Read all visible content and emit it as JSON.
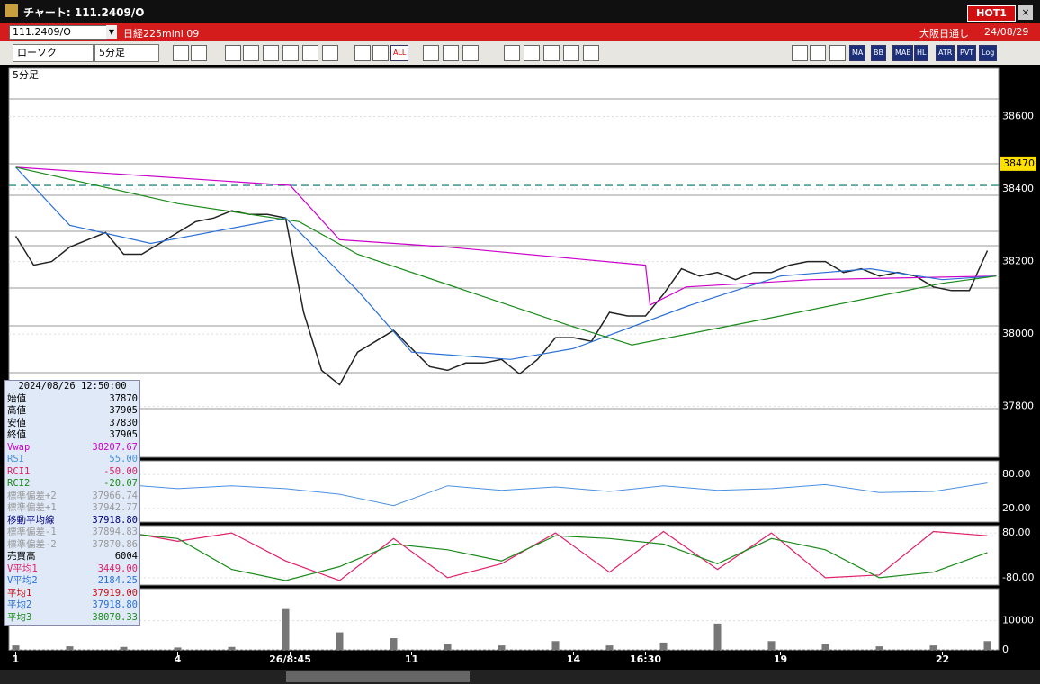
{
  "window": {
    "title": "チャート: 111.2409/O",
    "hot": "HOT1"
  },
  "header": {
    "symbol": "111.2409/O",
    "name": "日経225mini 09",
    "market": "大阪日通し",
    "date": "24/08/29"
  },
  "toolbar": {
    "chart_style": "ローソク",
    "interval": "5分足",
    "all_button": "ALL",
    "right_buttons": [
      "MA",
      "BB",
      "MAE",
      "HL",
      "ATR",
      "PVT",
      "Log"
    ]
  },
  "chart": {
    "period_label": "5分足",
    "xlim": [
      -1.5,
      218.5
    ],
    "xticks": [
      {
        "value": 0,
        "label": "1"
      },
      {
        "value": 36,
        "label": "4"
      },
      {
        "value": 61,
        "label": "26/8:45"
      },
      {
        "value": 88,
        "label": "11"
      },
      {
        "value": 124,
        "label": "14"
      },
      {
        "value": 140,
        "label": "16:30"
      },
      {
        "value": 170,
        "label": "19"
      },
      {
        "value": 206,
        "label": "22"
      }
    ],
    "price": {
      "ylim": [
        37660,
        38733
      ],
      "yticks": [
        37800,
        38000,
        38200,
        38400,
        38600
      ],
      "current": 38470,
      "dashed_level": 38410,
      "series": [
        {
          "name": "終値",
          "color": "#222222",
          "x": [
            0,
            4,
            8,
            12,
            16,
            20,
            24,
            28,
            32,
            36,
            40,
            44,
            48,
            52,
            56,
            60,
            64,
            68,
            72,
            76,
            80,
            84,
            88,
            92,
            96,
            100,
            104,
            108,
            112,
            116,
            120,
            124,
            128,
            132,
            136,
            140,
            144,
            148,
            152,
            156,
            160,
            164,
            168,
            172,
            176,
            180,
            184,
            188,
            192,
            196,
            200,
            204,
            208,
            212,
            216
          ],
          "values": [
            38270,
            38190,
            38200,
            38240,
            38260,
            38280,
            38220,
            38220,
            38250,
            38280,
            38310,
            38320,
            38340,
            38330,
            38330,
            38320,
            38060,
            37900,
            37860,
            37950,
            37980,
            38010,
            37960,
            37910,
            37900,
            37920,
            37920,
            37930,
            37890,
            37930,
            37990,
            37990,
            37980,
            38060,
            38050,
            38050,
            38110,
            38180,
            38160,
            38170,
            38150,
            38170,
            38170,
            38190,
            38200,
            38200,
            38170,
            38180,
            38160,
            38170,
            38160,
            38130,
            38120,
            38120,
            38230
          ]
        },
        {
          "name": "Vwap",
          "color": "#cc00cc",
          "x": [
            0,
            61,
            72,
            96,
            140,
            141,
            149,
            177,
            218
          ],
          "values": [
            38460,
            38410,
            38260,
            38240,
            38190,
            38080,
            38130,
            38150,
            38160
          ]
        },
        {
          "name": "移動平均線",
          "color": "#2a6fd6",
          "x": [
            0,
            12,
            30,
            60,
            76,
            88,
            110,
            124,
            150,
            170,
            190,
            206,
            218
          ],
          "values": [
            38460,
            38300,
            38250,
            38320,
            38120,
            37950,
            37930,
            37960,
            38080,
            38160,
            38180,
            38150,
            38160
          ]
        },
        {
          "name": "平均3",
          "color": "#1a8a1a",
          "x": [
            0,
            36,
            63,
            76,
            124,
            137,
            170,
            206,
            218
          ],
          "values": [
            38460,
            38360,
            38310,
            38220,
            38020,
            37970,
            38050,
            38140,
            38160
          ]
        }
      ]
    },
    "sub_x": [
      0,
      12,
      24,
      36,
      48,
      60,
      72,
      84,
      96,
      108,
      120,
      132,
      144,
      156,
      168,
      180,
      192,
      204,
      216
    ],
    "rsi": {
      "ylim": [
        -4,
        104
      ],
      "yticks": [
        {
          "value": 80,
          "label": "80.00"
        },
        {
          "value": 20,
          "label": "20.00"
        }
      ],
      "series": [
        {
          "name": "RSI",
          "color": "#4a90e2",
          "values": [
            60,
            45,
            62,
            55,
            60,
            55,
            45,
            25,
            60,
            52,
            58,
            50,
            60,
            52,
            55,
            62,
            48,
            50,
            65
          ]
        }
      ]
    },
    "rci": {
      "ylim": [
        -106,
        106
      ],
      "yticks": [
        {
          "value": 80,
          "label": "80.00"
        },
        {
          "value": -80,
          "label": "-80.00"
        }
      ],
      "series": [
        {
          "name": "RCI1",
          "color": "#e0206a",
          "values": [
            80,
            60,
            85,
            50,
            80,
            -20,
            -90,
            60,
            -80,
            -30,
            80,
            -60,
            85,
            -50,
            80,
            -80,
            -70,
            85,
            70
          ]
        },
        {
          "name": "RCI2",
          "color": "#1a8a1a",
          "values": [
            0,
            40,
            80,
            60,
            -50,
            -90,
            -40,
            40,
            20,
            -20,
            70,
            60,
            40,
            -30,
            60,
            20,
            -80,
            -60,
            10
          ]
        }
      ]
    },
    "volume": {
      "ylim": [
        0,
        21000
      ],
      "yticks": [
        10000,
        0
      ],
      "color": "#777777",
      "values": [
        1500,
        1200,
        1000,
        800,
        1000,
        14000,
        6000,
        4000,
        2000,
        1500,
        3000,
        1500,
        2500,
        9000,
        3000,
        2000,
        1200,
        1500,
        3000
      ]
    }
  },
  "info_panel": {
    "timestamp": "2024/08/26 12:50:00",
    "rows": [
      {
        "label": "始値",
        "value": "37870",
        "color": "#000000"
      },
      {
        "label": "高値",
        "value": "37905",
        "color": "#000000"
      },
      {
        "label": "安値",
        "value": "37830",
        "color": "#000000"
      },
      {
        "label": "終値",
        "value": "37905",
        "color": "#000000"
      },
      {
        "label": "Vwap",
        "value": "38207.67",
        "color": "#cc00cc"
      },
      {
        "label": "RSI",
        "value": "55.00",
        "color": "#4a90e2"
      },
      {
        "label": "RCI1",
        "value": "-50.00",
        "color": "#e0206a"
      },
      {
        "label": "RCI2",
        "value": "-20.07",
        "color": "#1a8a1a"
      },
      {
        "label": "標準偏差+2",
        "value": "37966.74",
        "color": "#999999"
      },
      {
        "label": "標準偏差+1",
        "value": "37942.77",
        "color": "#999999"
      },
      {
        "label": "移動平均線",
        "value": "37918.80",
        "color": "#000080"
      },
      {
        "label": "標準偏差-1",
        "value": "37894.83",
        "color": "#999999"
      },
      {
        "label": "標準偏差-2",
        "value": "37870.86",
        "color": "#999999"
      },
      {
        "label": "売買高",
        "value": "6004",
        "color": "#000000"
      },
      {
        "label": "V平均1",
        "value": "3449.00",
        "color": "#e0206a"
      },
      {
        "label": "V平均2",
        "value": "2184.25",
        "color": "#2a6fd6"
      },
      {
        "label": "平均1",
        "value": "37919.00",
        "color": "#d01010"
      },
      {
        "label": "平均2",
        "value": "37918.80",
        "color": "#2a6fd6"
      },
      {
        "label": "平均3",
        "value": "38070.33",
        "color": "#1a8a1a"
      }
    ]
  }
}
